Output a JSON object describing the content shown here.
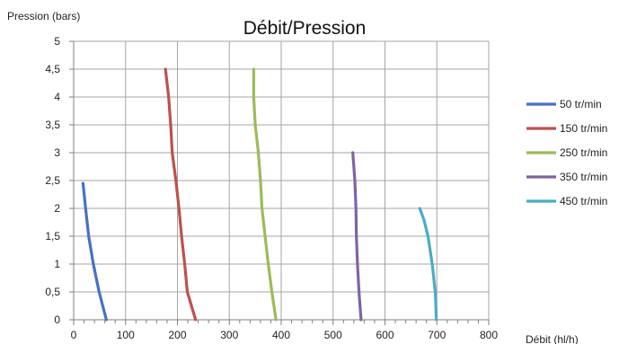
{
  "chart_data": {
    "type": "line",
    "title": "Débit/Pression",
    "xlabel": "Débit (hl/h)",
    "ylabel": "Pression (bars)",
    "xlim": [
      0,
      800
    ],
    "ylim": [
      0,
      5
    ],
    "x_ticks": [
      "0",
      "100",
      "200",
      "300",
      "400",
      "500",
      "600",
      "700",
      "800"
    ],
    "y_ticks": [
      "0",
      "0,5",
      "1",
      "1,5",
      "2",
      "2,5",
      "3",
      "3,5",
      "4",
      "4,5",
      "5"
    ],
    "grid": true,
    "legend_position": "right",
    "series": [
      {
        "name": "50 tr/min",
        "color": "#4472C4",
        "points": [
          [
            18,
            2.45
          ],
          [
            23,
            2.0
          ],
          [
            29,
            1.5
          ],
          [
            38,
            1.0
          ],
          [
            49,
            0.5
          ],
          [
            63,
            0.0
          ]
        ]
      },
      {
        "name": "150 tr/min",
        "color": "#C0504D",
        "points": [
          [
            177,
            4.5
          ],
          [
            183,
            4.0
          ],
          [
            187,
            3.5
          ],
          [
            190,
            3.0
          ],
          [
            197,
            2.5
          ],
          [
            203,
            2.0
          ],
          [
            208,
            1.5
          ],
          [
            214,
            1.0
          ],
          [
            219,
            0.5
          ],
          [
            235,
            0.0
          ]
        ]
      },
      {
        "name": "250 tr/min",
        "color": "#9BBB59",
        "points": [
          [
            347,
            4.5
          ],
          [
            347,
            4.0
          ],
          [
            350,
            3.5
          ],
          [
            356,
            3.0
          ],
          [
            360,
            2.5
          ],
          [
            363,
            2.0
          ],
          [
            369,
            1.5
          ],
          [
            375,
            1.0
          ],
          [
            382,
            0.5
          ],
          [
            390,
            0.0
          ]
        ]
      },
      {
        "name": "350 tr/min",
        "color": "#8064A2",
        "points": [
          [
            538,
            3.0
          ],
          [
            542,
            2.5
          ],
          [
            544,
            2.0
          ],
          [
            545,
            1.5
          ],
          [
            547,
            1.0
          ],
          [
            550,
            0.5
          ],
          [
            554,
            0.0
          ]
        ]
      },
      {
        "name": "450 tr/min",
        "color": "#4BACC6",
        "points": [
          [
            667,
            2.0
          ],
          [
            675,
            1.8
          ],
          [
            683,
            1.5
          ],
          [
            691,
            1.0
          ],
          [
            697,
            0.5
          ],
          [
            699,
            0.0
          ]
        ]
      }
    ]
  }
}
